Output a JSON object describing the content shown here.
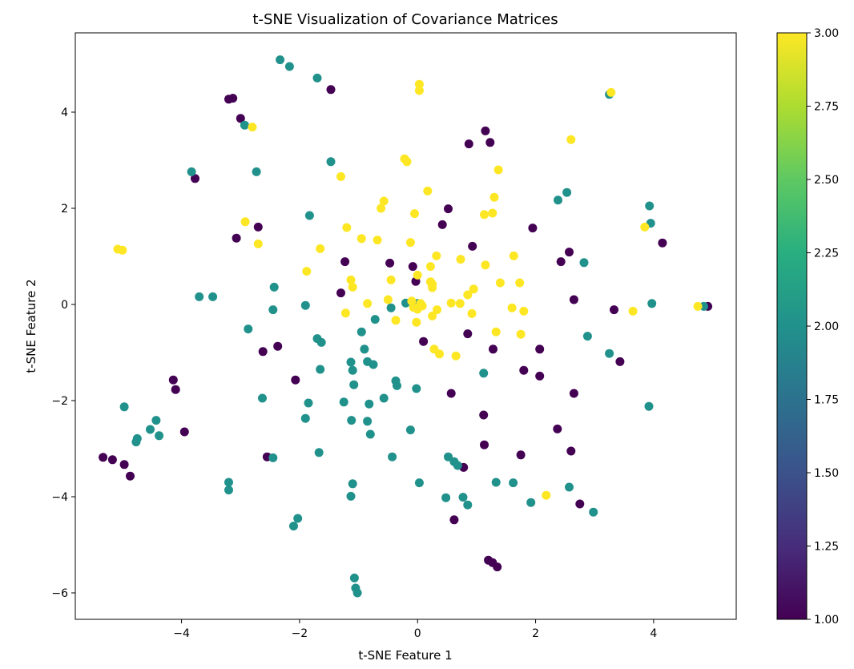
{
  "chart_data": {
    "type": "scatter",
    "title": "t-SNE Visualization of Covariance Matrices",
    "xlabel": "t-SNE Feature 1",
    "ylabel": "t-SNE Feature 2",
    "xlim": [
      -5.8,
      5.4
    ],
    "ylim": [
      -6.55,
      5.65
    ],
    "xticks": [
      -4,
      -2,
      0,
      2,
      4
    ],
    "yticks": [
      -6,
      -4,
      -2,
      0,
      2,
      4
    ],
    "grid": false,
    "colormap": "viridis",
    "colorbar": {
      "range": [
        1.0,
        3.0
      ],
      "ticks": [
        "1.00",
        "1.25",
        "1.50",
        "1.75",
        "2.00",
        "2.25",
        "2.50",
        "2.75",
        "3.00"
      ]
    },
    "class_colors": {
      "1": "#440154",
      "2": "#21918c",
      "3": "#fde725"
    },
    "series": [
      {
        "values": [
          {
            "x": -3.2,
            "y": 4.27
          },
          {
            "x": -3.13,
            "y": 4.29
          },
          {
            "x": -3.0,
            "y": 3.87
          },
          {
            "x": -1.47,
            "y": 4.47
          },
          {
            "x": -3.77,
            "y": 2.62
          },
          {
            "x": -2.7,
            "y": 1.61
          },
          {
            "x": -3.07,
            "y": 1.38
          },
          {
            "x": -1.3,
            "y": 0.24
          },
          {
            "x": -1.23,
            "y": 0.89
          },
          {
            "x": -2.62,
            "y": -0.98
          },
          {
            "x": -2.37,
            "y": -0.87
          },
          {
            "x": -2.07,
            "y": -1.57
          },
          {
            "x": -4.14,
            "y": -1.57
          },
          {
            "x": -4.1,
            "y": -1.77
          },
          {
            "x": -3.95,
            "y": -2.65
          },
          {
            "x": -2.55,
            "y": -3.17
          },
          {
            "x": -5.33,
            "y": -3.18
          },
          {
            "x": -5.17,
            "y": -3.23
          },
          {
            "x": -4.97,
            "y": -3.33
          },
          {
            "x": -4.87,
            "y": -3.57
          },
          {
            "x": -0.47,
            "y": 0.86
          },
          {
            "x": -0.08,
            "y": 0.79
          },
          {
            "x": -0.03,
            "y": 0.48
          },
          {
            "x": 0.1,
            "y": -0.77
          },
          {
            "x": 0.42,
            "y": 1.66
          },
          {
            "x": 0.52,
            "y": 1.99
          },
          {
            "x": 0.57,
            "y": -1.85
          },
          {
            "x": 0.62,
            "y": -4.48
          },
          {
            "x": 0.93,
            "y": 1.21
          },
          {
            "x": 0.87,
            "y": 3.34
          },
          {
            "x": 1.15,
            "y": 3.61
          },
          {
            "x": 1.23,
            "y": 3.37
          },
          {
            "x": 0.85,
            "y": -0.61
          },
          {
            "x": 1.28,
            "y": -0.93
          },
          {
            "x": 1.12,
            "y": -2.3
          },
          {
            "x": 1.13,
            "y": -2.92
          },
          {
            "x": 0.78,
            "y": -3.39
          },
          {
            "x": 1.2,
            "y": -5.32
          },
          {
            "x": 1.27,
            "y": -5.37
          },
          {
            "x": 1.35,
            "y": -5.46
          },
          {
            "x": 1.95,
            "y": 1.59
          },
          {
            "x": 2.07,
            "y": -0.93
          },
          {
            "x": 2.07,
            "y": -1.49
          },
          {
            "x": 1.8,
            "y": -1.37
          },
          {
            "x": 1.75,
            "y": -3.13
          },
          {
            "x": 2.37,
            "y": -2.59
          },
          {
            "x": 2.6,
            "y": -3.05
          },
          {
            "x": 2.75,
            "y": -4.15
          },
          {
            "x": 2.65,
            "y": -1.85
          },
          {
            "x": 2.65,
            "y": 0.1
          },
          {
            "x": 2.43,
            "y": 0.89
          },
          {
            "x": 2.57,
            "y": 1.09
          },
          {
            "x": 3.33,
            "y": -0.11
          },
          {
            "x": 3.43,
            "y": -1.19
          },
          {
            "x": 4.15,
            "y": 1.28
          },
          {
            "x": 4.92,
            "y": -0.04
          }
        ]
      },
      {
        "values": [
          {
            "x": -2.33,
            "y": 5.09
          },
          {
            "x": -2.17,
            "y": 4.95
          },
          {
            "x": -1.7,
            "y": 4.71
          },
          {
            "x": -2.93,
            "y": 3.73
          },
          {
            "x": -3.83,
            "y": 2.76
          },
          {
            "x": -2.73,
            "y": 2.76
          },
          {
            "x": -1.47,
            "y": 2.97
          },
          {
            "x": -1.83,
            "y": 1.85
          },
          {
            "x": -3.7,
            "y": 0.16
          },
          {
            "x": -3.47,
            "y": 0.16
          },
          {
            "x": -2.43,
            "y": 0.36
          },
          {
            "x": -2.45,
            "y": -0.11
          },
          {
            "x": -2.87,
            "y": -0.51
          },
          {
            "x": -1.9,
            "y": -0.02
          },
          {
            "x": -1.7,
            "y": -0.71
          },
          {
            "x": -1.63,
            "y": -0.79
          },
          {
            "x": -1.65,
            "y": -1.35
          },
          {
            "x": -2.63,
            "y": -1.95
          },
          {
            "x": -1.85,
            "y": -2.05
          },
          {
            "x": -1.9,
            "y": -2.37
          },
          {
            "x": -1.67,
            "y": -3.08
          },
          {
            "x": -2.45,
            "y": -3.19
          },
          {
            "x": -3.2,
            "y": -3.7
          },
          {
            "x": -3.2,
            "y": -3.86
          },
          {
            "x": -2.03,
            "y": -4.45
          },
          {
            "x": -2.1,
            "y": -4.61
          },
          {
            "x": -4.97,
            "y": -2.13
          },
          {
            "x": -4.43,
            "y": -2.41
          },
          {
            "x": -4.53,
            "y": -2.6
          },
          {
            "x": -4.38,
            "y": -2.73
          },
          {
            "x": -4.75,
            "y": -2.79
          },
          {
            "x": -4.77,
            "y": -2.86
          },
          {
            "x": -1.13,
            "y": -1.2
          },
          {
            "x": -1.1,
            "y": -1.37
          },
          {
            "x": -1.08,
            "y": -1.67
          },
          {
            "x": -1.25,
            "y": -2.03
          },
          {
            "x": -1.12,
            "y": -2.41
          },
          {
            "x": -0.95,
            "y": -0.57
          },
          {
            "x": -0.9,
            "y": -0.93
          },
          {
            "x": -0.85,
            "y": -1.19
          },
          {
            "x": -0.75,
            "y": -1.25
          },
          {
            "x": -0.72,
            "y": -0.31
          },
          {
            "x": -0.45,
            "y": -0.07
          },
          {
            "x": -0.82,
            "y": -2.07
          },
          {
            "x": -0.85,
            "y": -2.43
          },
          {
            "x": -0.8,
            "y": -2.7
          },
          {
            "x": -0.37,
            "y": -1.59
          },
          {
            "x": -0.35,
            "y": -1.69
          },
          {
            "x": -0.57,
            "y": -1.95
          },
          {
            "x": -0.43,
            "y": -3.17
          },
          {
            "x": -1.1,
            "y": -3.73
          },
          {
            "x": -1.13,
            "y": -3.99
          },
          {
            "x": -1.07,
            "y": -5.69
          },
          {
            "x": -1.05,
            "y": -5.9
          },
          {
            "x": -1.02,
            "y": -6.0
          },
          {
            "x": -0.2,
            "y": 0.03
          },
          {
            "x": 0.0,
            "y": 0.02
          },
          {
            "x": -0.02,
            "y": -1.75
          },
          {
            "x": -0.12,
            "y": -2.61
          },
          {
            "x": 0.03,
            "y": -3.71
          },
          {
            "x": 0.52,
            "y": -3.17
          },
          {
            "x": 0.62,
            "y": -3.27
          },
          {
            "x": 0.68,
            "y": -3.35
          },
          {
            "x": 0.48,
            "y": -4.02
          },
          {
            "x": 0.77,
            "y": -4.01
          },
          {
            "x": 0.85,
            "y": -4.17
          },
          {
            "x": 1.12,
            "y": -1.43
          },
          {
            "x": 1.33,
            "y": -3.7
          },
          {
            "x": 1.62,
            "y": -3.71
          },
          {
            "x": 1.92,
            "y": -4.12
          },
          {
            "x": 2.57,
            "y": -3.8
          },
          {
            "x": 2.98,
            "y": -4.32
          },
          {
            "x": 2.38,
            "y": 2.17
          },
          {
            "x": 2.53,
            "y": 2.33
          },
          {
            "x": 2.82,
            "y": 0.87
          },
          {
            "x": 2.88,
            "y": -0.66
          },
          {
            "x": 3.25,
            "y": -1.02
          },
          {
            "x": 3.25,
            "y": 4.37
          },
          {
            "x": 3.93,
            "y": 2.05
          },
          {
            "x": 3.95,
            "y": 1.69
          },
          {
            "x": 3.97,
            "y": 0.02
          },
          {
            "x": 3.92,
            "y": -2.12
          },
          {
            "x": 4.85,
            "y": -0.04
          }
        ]
      },
      {
        "values": [
          {
            "x": -2.8,
            "y": 3.69
          },
          {
            "x": -1.3,
            "y": 2.66
          },
          {
            "x": -2.92,
            "y": 1.72
          },
          {
            "x": -2.7,
            "y": 1.26
          },
          {
            "x": -5.08,
            "y": 1.15
          },
          {
            "x": -5.0,
            "y": 1.13
          },
          {
            "x": -1.65,
            "y": 1.16
          },
          {
            "x": -1.88,
            "y": 0.69
          },
          {
            "x": -1.2,
            "y": 1.6
          },
          {
            "x": -0.95,
            "y": 1.37
          },
          {
            "x": -0.68,
            "y": 1.34
          },
          {
            "x": -0.62,
            "y": 2.0
          },
          {
            "x": -0.57,
            "y": 2.15
          },
          {
            "x": -1.13,
            "y": 0.51
          },
          {
            "x": -1.1,
            "y": 0.36
          },
          {
            "x": -1.22,
            "y": -0.18
          },
          {
            "x": -0.85,
            "y": 0.02
          },
          {
            "x": -0.5,
            "y": 0.1
          },
          {
            "x": -0.45,
            "y": 0.51
          },
          {
            "x": -0.37,
            "y": -0.33
          },
          {
            "x": -0.22,
            "y": 3.03
          },
          {
            "x": -0.18,
            "y": 2.97
          },
          {
            "x": 0.03,
            "y": 4.58
          },
          {
            "x": 0.03,
            "y": 4.45
          },
          {
            "x": -0.05,
            "y": 1.89
          },
          {
            "x": -0.12,
            "y": 1.29
          },
          {
            "x": -0.1,
            "y": 0.07
          },
          {
            "x": -0.07,
            "y": -0.06
          },
          {
            "x": 0.0,
            "y": -0.1
          },
          {
            "x": 0.05,
            "y": 0.02
          },
          {
            "x": 0.08,
            "y": -0.03
          },
          {
            "x": 0.0,
            "y": 0.61
          },
          {
            "x": -0.02,
            "y": -0.37
          },
          {
            "x": 0.17,
            "y": 2.36
          },
          {
            "x": 0.22,
            "y": 0.79
          },
          {
            "x": 0.22,
            "y": 0.47
          },
          {
            "x": 0.25,
            "y": 0.42
          },
          {
            "x": 0.25,
            "y": 0.35
          },
          {
            "x": 0.25,
            "y": -0.24
          },
          {
            "x": 0.33,
            "y": -0.11
          },
          {
            "x": 0.32,
            "y": 1.01
          },
          {
            "x": 0.28,
            "y": -0.93
          },
          {
            "x": 0.37,
            "y": -1.03
          },
          {
            "x": 0.57,
            "y": 0.03
          },
          {
            "x": 0.65,
            "y": -1.07
          },
          {
            "x": 0.72,
            "y": 0.02
          },
          {
            "x": 0.73,
            "y": 0.94
          },
          {
            "x": 0.85,
            "y": 0.2
          },
          {
            "x": 0.92,
            "y": -0.19
          },
          {
            "x": 0.95,
            "y": 0.32
          },
          {
            "x": 1.13,
            "y": 1.87
          },
          {
            "x": 1.15,
            "y": 0.82
          },
          {
            "x": 1.27,
            "y": 1.9
          },
          {
            "x": 1.3,
            "y": 2.23
          },
          {
            "x": 1.37,
            "y": 2.8
          },
          {
            "x": 1.4,
            "y": 0.45
          },
          {
            "x": 1.33,
            "y": -0.57
          },
          {
            "x": 1.63,
            "y": 1.01
          },
          {
            "x": 1.6,
            "y": -0.07
          },
          {
            "x": 1.73,
            "y": 0.45
          },
          {
            "x": 1.75,
            "y": -0.62
          },
          {
            "x": 1.8,
            "y": -0.14
          },
          {
            "x": 2.18,
            "y": -3.97
          },
          {
            "x": 2.6,
            "y": 3.43
          },
          {
            "x": 3.28,
            "y": 4.41
          },
          {
            "x": 3.85,
            "y": 1.61
          },
          {
            "x": 3.65,
            "y": -0.14
          },
          {
            "x": 4.75,
            "y": -0.04
          }
        ]
      }
    ]
  }
}
